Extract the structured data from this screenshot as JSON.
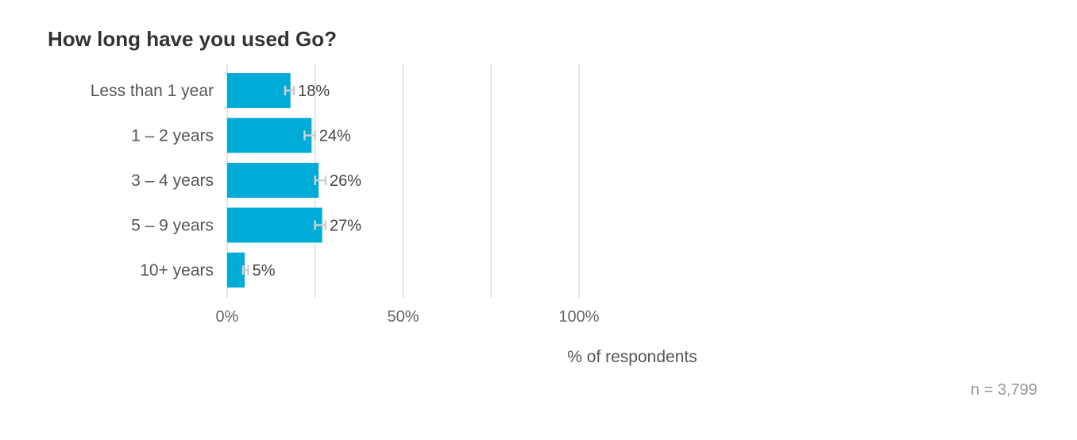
{
  "chart_data": {
    "type": "bar",
    "orientation": "horizontal",
    "title": "How long have you used Go?",
    "categories": [
      "Less than 1 year",
      "1 – 2 years",
      "3 – 4 years",
      "5 – 9 years",
      "10+ years"
    ],
    "values": [
      18,
      24,
      26,
      27,
      5
    ],
    "value_labels": [
      "18%",
      "24%",
      "26%",
      "27%",
      "5%"
    ],
    "error_bars": [
      [
        16.5,
        19
      ],
      [
        22,
        25
      ],
      [
        25,
        28
      ],
      [
        25,
        28
      ],
      [
        4.5,
        6
      ]
    ],
    "xlabel": "% of respondents",
    "ylabel": "",
    "xlim": [
      0,
      125
    ],
    "x_ticks": [
      0,
      50,
      100
    ],
    "x_tick_labels": [
      "0%",
      "50%",
      "100%"
    ],
    "grid": true,
    "bar_color": "#00acd7",
    "caption": "n =  3,799"
  }
}
